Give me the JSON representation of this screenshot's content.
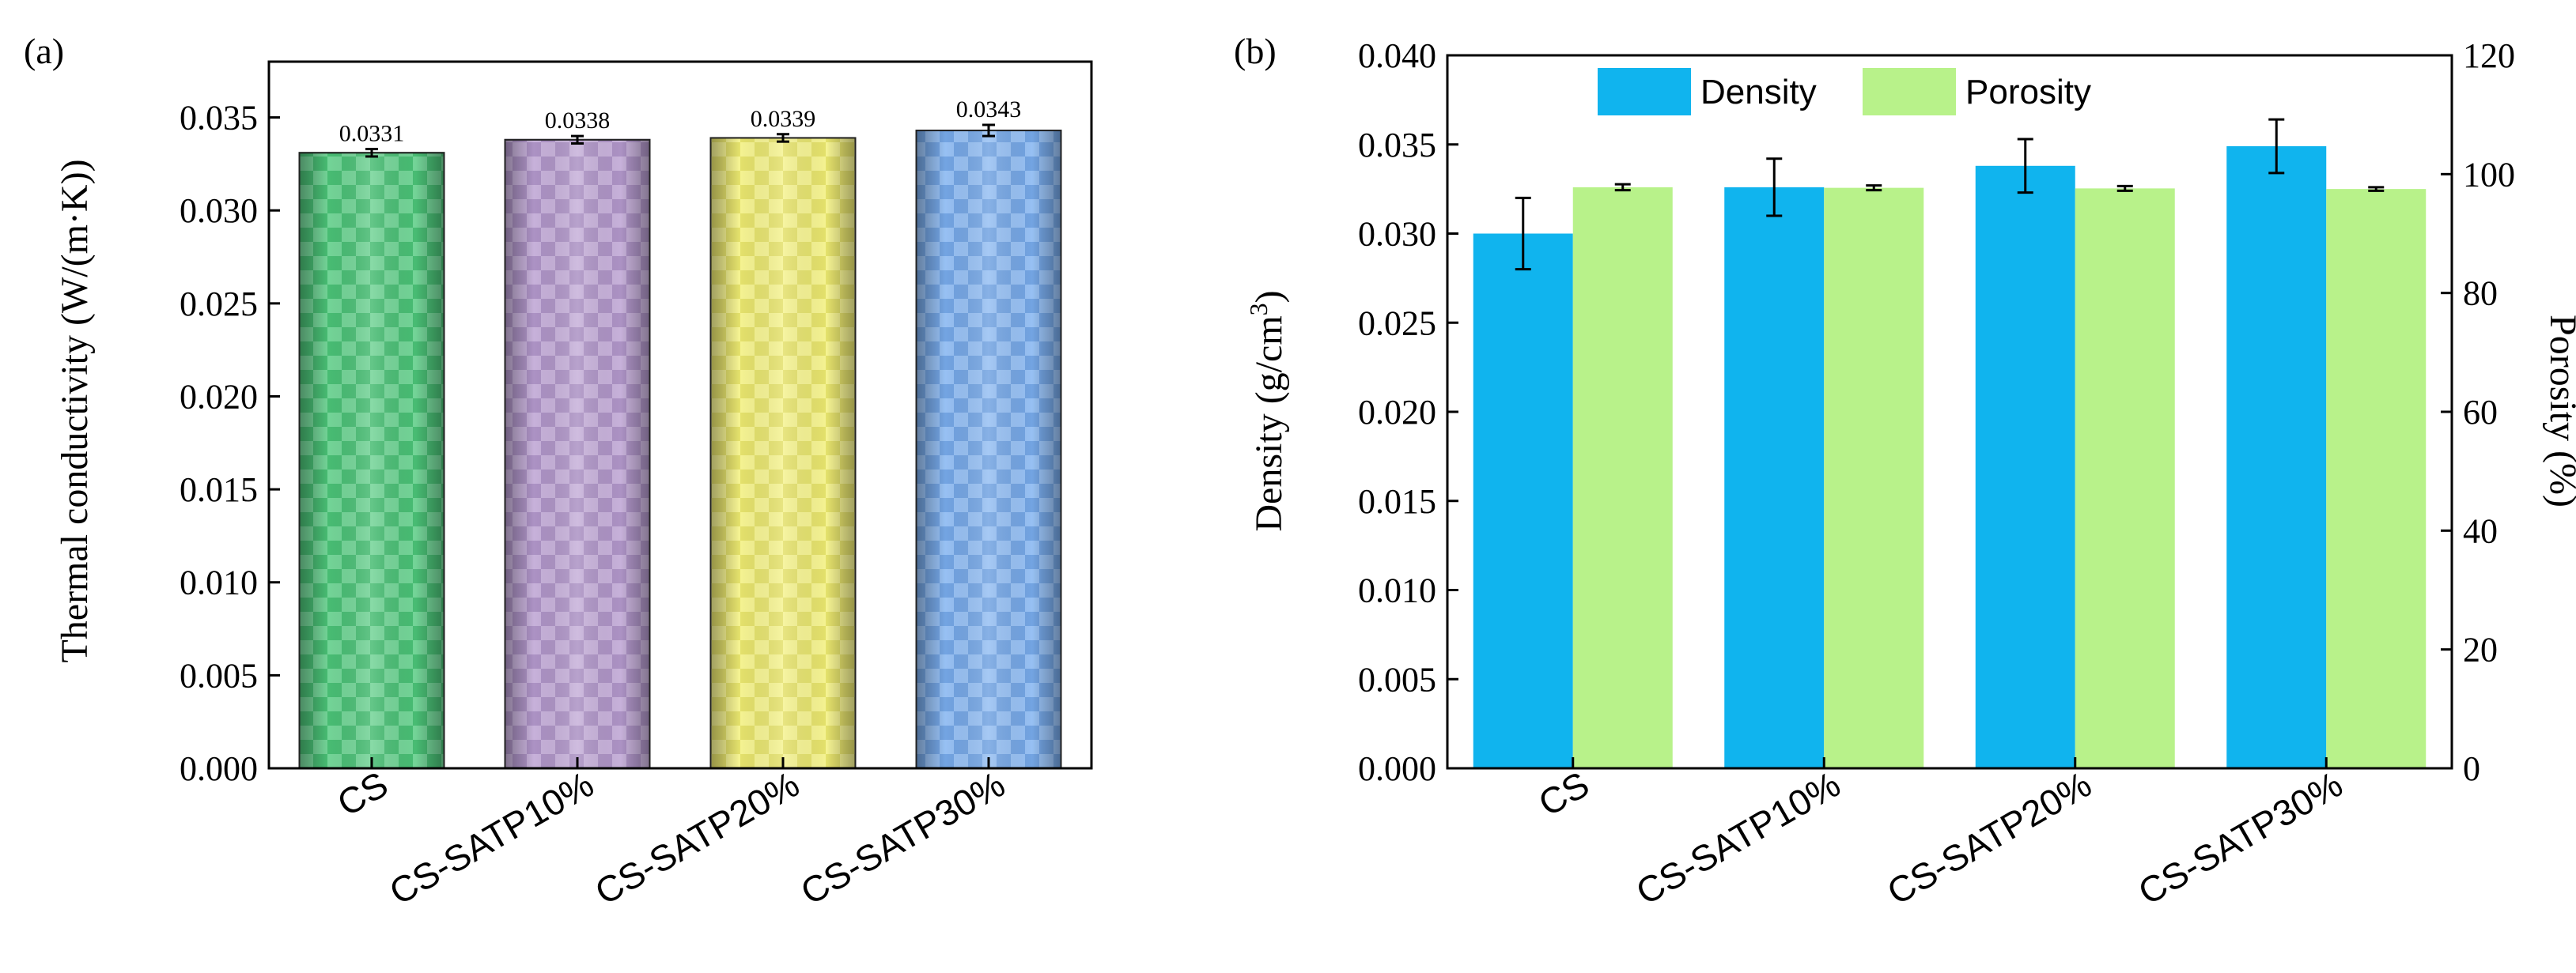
{
  "chart_data": [
    {
      "panel": "(a)",
      "type": "bar",
      "categories": [
        "CS",
        "CS-SATP10%",
        "CS-SATP20%",
        "CS-SATP30%"
      ],
      "series": [
        {
          "name": "Thermal conductivity",
          "values": [
            0.0331,
            0.0338,
            0.0339,
            0.0343
          ],
          "errors": [
            0.0002,
            0.0002,
            0.0002,
            0.0003
          ],
          "value_labels": [
            "0.0331",
            "0.0338",
            "0.0339",
            "0.0343"
          ],
          "colors": [
            "#4cc87a",
            "#b79bd0",
            "#f2ef73",
            "#7aaef0"
          ],
          "edge_colors": [
            "#1f7a3f",
            "#6e5785",
            "#9a9830",
            "#2f5fa8"
          ]
        }
      ],
      "ylabel": "Thermal conductivity (W/(m·K))",
      "xlabel": "",
      "ylim": [
        0,
        0.038
      ],
      "yticks": [
        "0.000",
        "0.005",
        "0.010",
        "0.015",
        "0.020",
        "0.025",
        "0.030",
        "0.035"
      ],
      "ytick_values": [
        0,
        0.005,
        0.01,
        0.015,
        0.02,
        0.025,
        0.03,
        0.035
      ]
    },
    {
      "panel": "(b)",
      "type": "bar",
      "categories": [
        "CS",
        "CS-SATP10%",
        "CS-SATP20%",
        "CS-SATP30%"
      ],
      "series": [
        {
          "name": "Density",
          "axis": "left",
          "values": [
            0.03,
            0.0326,
            0.0338,
            0.0349
          ],
          "errors": [
            0.002,
            0.0016,
            0.0015,
            0.0015
          ],
          "color": "#10b4ee"
        },
        {
          "name": "Porosity",
          "axis": "right",
          "values": [
            97.8,
            97.7,
            97.6,
            97.5
          ],
          "errors": [
            0.5,
            0.4,
            0.4,
            0.3
          ],
          "color": "#b8f28a"
        }
      ],
      "legend": [
        "Density",
        "Porosity"
      ],
      "legend_position": "top-center",
      "ylabel_left": "Density (g/cm",
      "ylabel_left_sup": "3",
      "ylabel_left_end": ")",
      "ylabel_right": "Porosity (%)",
      "ylim_left": [
        0,
        0.04
      ],
      "ylim_right": [
        0,
        120
      ],
      "yticks_left": [
        "0.000",
        "0.005",
        "0.010",
        "0.015",
        "0.020",
        "0.025",
        "0.030",
        "0.035",
        "0.040"
      ],
      "ytick_values_left": [
        0,
        0.005,
        0.01,
        0.015,
        0.02,
        0.025,
        0.03,
        0.035,
        0.04
      ],
      "yticks_right": [
        "0",
        "20",
        "40",
        "60",
        "80",
        "100",
        "120"
      ],
      "ytick_values_right": [
        0,
        20,
        40,
        60,
        80,
        100,
        120
      ]
    }
  ]
}
